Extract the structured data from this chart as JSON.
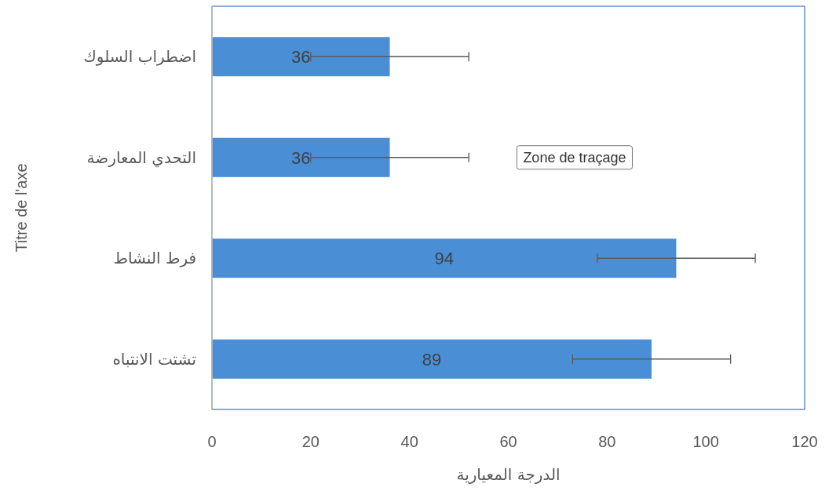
{
  "chart_data": {
    "type": "bar",
    "orientation": "horizontal",
    "categories": [
      "اضطراب السلوك",
      "التحدي المعارضة",
      "فرط النشاط",
      "تشتت الانتباه"
    ],
    "values": [
      36,
      36,
      94,
      89
    ],
    "errors": [
      16,
      16,
      16,
      16
    ],
    "color": "#4a8fd6",
    "xlabel": "الدرجة المعيارية",
    "ylabel": "Titre de l'axe",
    "xlim": [
      0,
      120
    ],
    "xticks": [
      0,
      20,
      40,
      60,
      80,
      100,
      120
    ],
    "data_labels": true,
    "annotations": [
      "Zone de traçage"
    ]
  }
}
